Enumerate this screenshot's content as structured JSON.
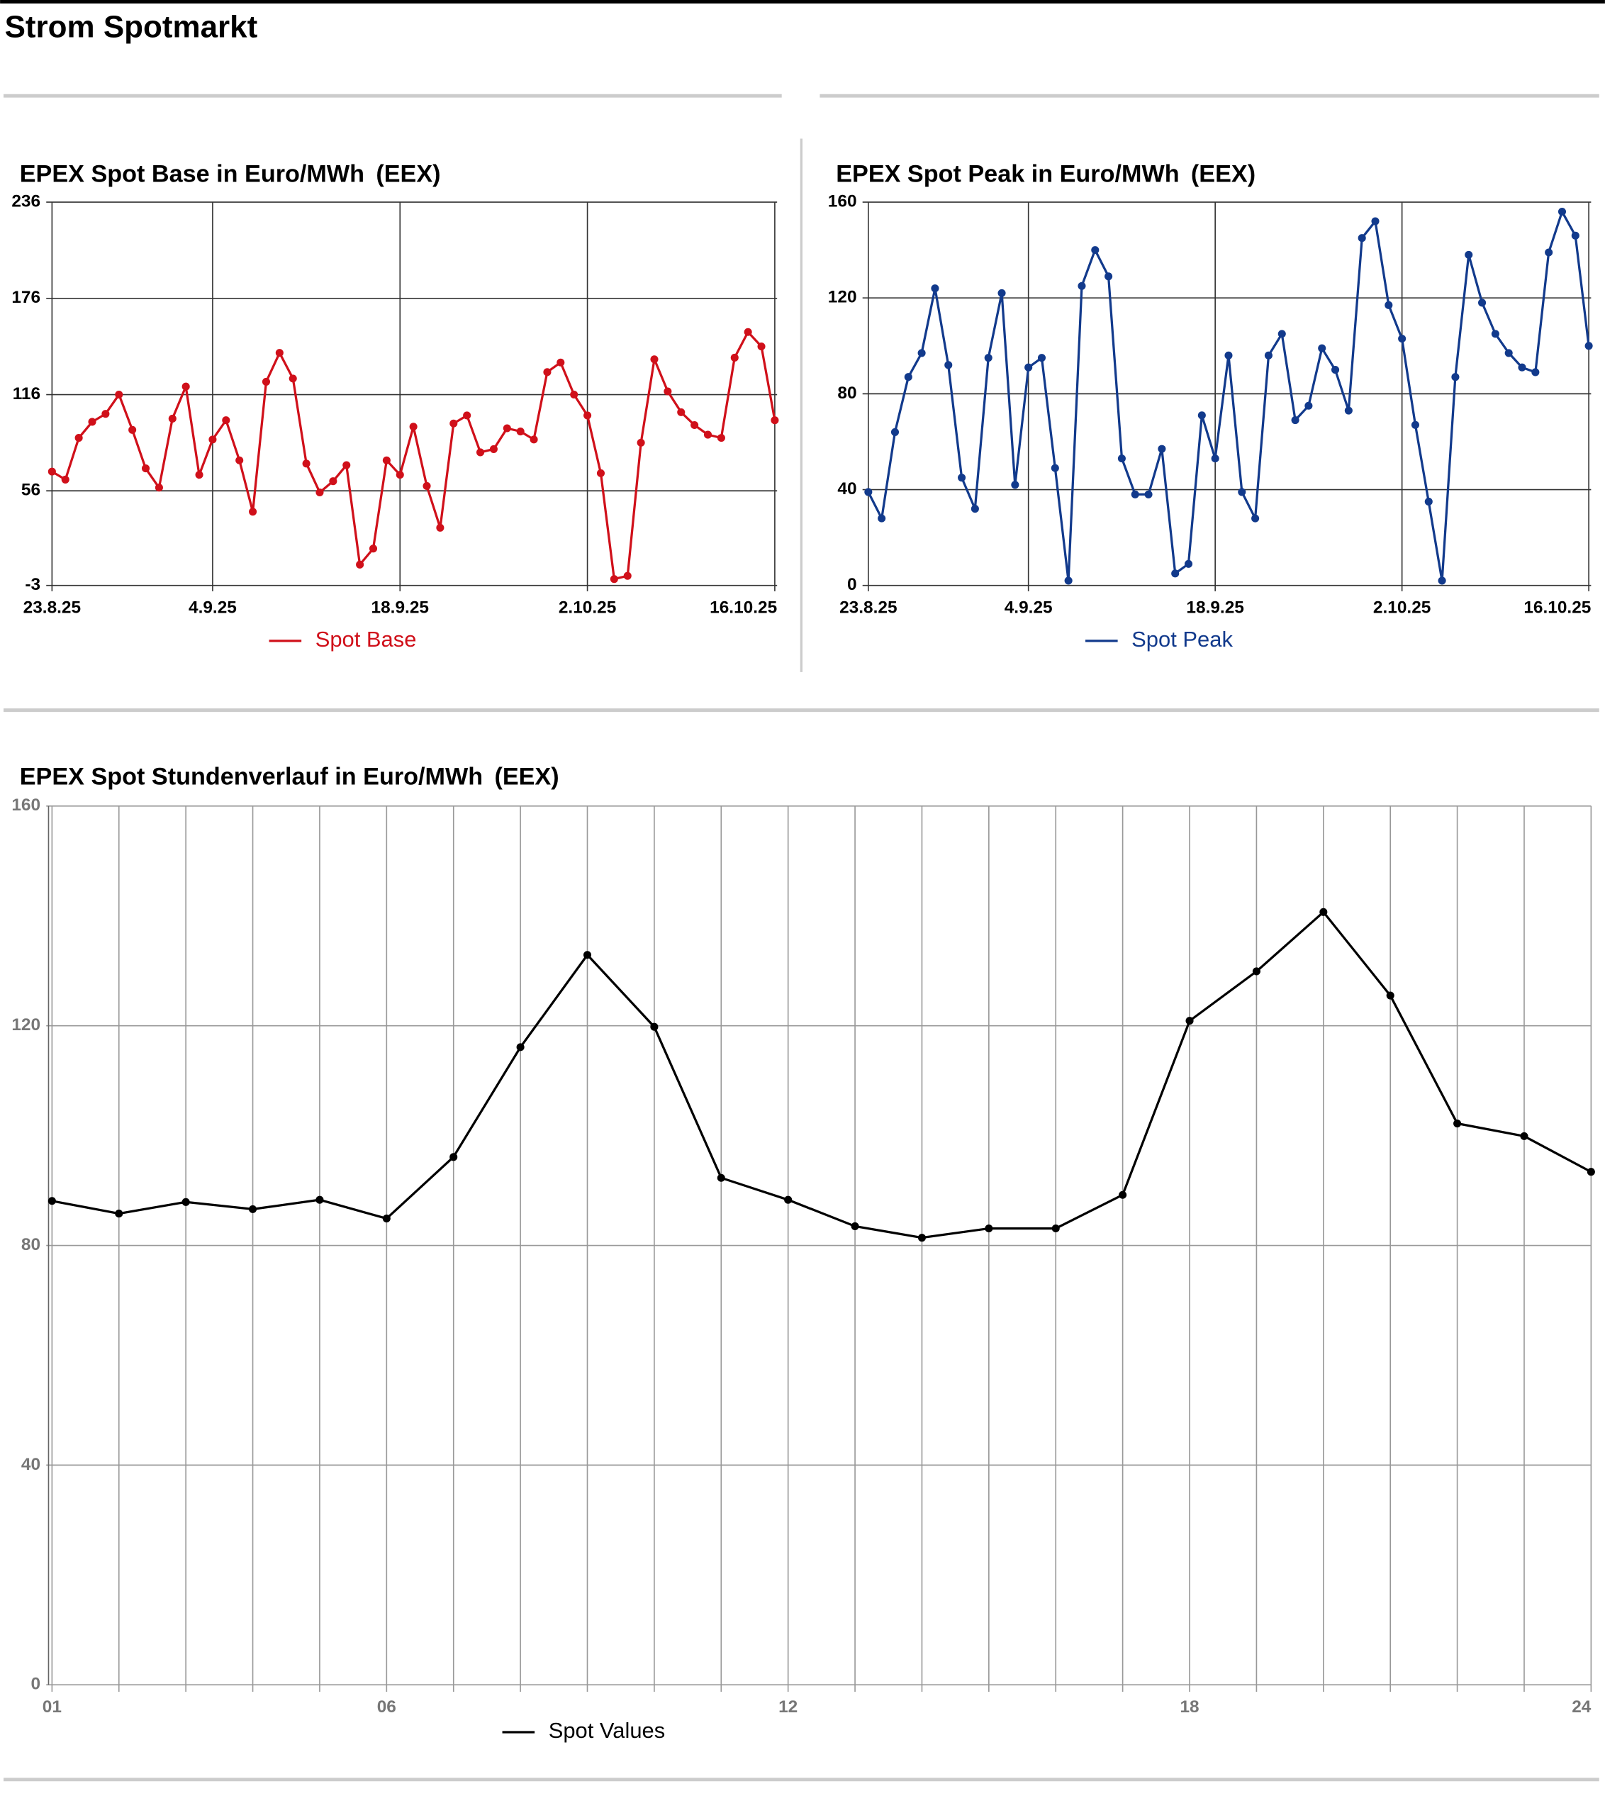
{
  "header": {
    "title": "Strom Spotmarkt"
  },
  "chart_data": [
    {
      "type": "line",
      "title": "EPEX Spot Base in Euro/MWh",
      "source": "(EEX)",
      "x": [
        "23.8.25",
        "24.8.25",
        "25.8.25",
        "26.8.25",
        "27.8.25",
        "28.8.25",
        "29.8.25",
        "30.8.25",
        "31.8.25",
        "1.9.25",
        "2.9.25",
        "3.9.25",
        "4.9.25",
        "5.9.25",
        "6.9.25",
        "7.9.25",
        "8.9.25",
        "9.9.25",
        "10.9.25",
        "11.9.25",
        "12.9.25",
        "13.9.25",
        "14.9.25",
        "15.9.25",
        "16.9.25",
        "17.9.25",
        "18.9.25",
        "19.9.25",
        "20.9.25",
        "21.9.25",
        "22.9.25",
        "23.9.25",
        "24.9.25",
        "25.9.25",
        "26.9.25",
        "27.9.25",
        "28.9.25",
        "29.9.25",
        "30.9.25",
        "1.10.25",
        "2.10.25",
        "3.10.25",
        "4.10.25",
        "5.10.25",
        "6.10.25",
        "7.10.25",
        "8.10.25",
        "9.10.25",
        "10.10.25",
        "11.10.25",
        "12.10.25",
        "13.10.25",
        "14.10.25",
        "15.10.25",
        "16.10.25"
      ],
      "xticks": [
        "23.8.25",
        "4.9.25",
        "18.9.25",
        "2.10.25",
        "16.10.25"
      ],
      "series": [
        {
          "name": "Spot Base",
          "color": "#d0101a",
          "values": [
            68,
            63,
            89,
            99,
            104,
            116,
            94,
            70,
            58,
            101,
            121,
            66,
            88,
            100,
            75,
            43,
            124,
            142,
            126,
            73,
            55,
            62,
            72,
            10,
            20,
            75,
            66,
            96,
            59,
            33,
            98,
            103,
            80,
            82,
            95,
            93,
            88,
            130,
            136,
            116,
            103,
            67,
            1,
            3,
            86,
            138,
            118,
            105,
            97,
            91,
            89,
            139,
            155,
            146,
            100
          ]
        }
      ],
      "ylim": [
        -3,
        236
      ],
      "yticks": [
        -3,
        56,
        116,
        176,
        236
      ],
      "grid": true
    },
    {
      "type": "line",
      "title": "EPEX Spot Peak in Euro/MWh",
      "source": "(EEX)",
      "x": [
        "23.8.25",
        "24.8.25",
        "25.8.25",
        "26.8.25",
        "27.8.25",
        "28.8.25",
        "29.8.25",
        "30.8.25",
        "31.8.25",
        "1.9.25",
        "2.9.25",
        "3.9.25",
        "4.9.25",
        "5.9.25",
        "6.9.25",
        "7.9.25",
        "8.9.25",
        "9.9.25",
        "10.9.25",
        "11.9.25",
        "12.9.25",
        "13.9.25",
        "14.9.25",
        "15.9.25",
        "16.9.25",
        "17.9.25",
        "18.9.25",
        "19.9.25",
        "20.9.25",
        "21.9.25",
        "22.9.25",
        "23.9.25",
        "24.9.25",
        "25.9.25",
        "26.9.25",
        "27.9.25",
        "28.9.25",
        "29.9.25",
        "30.9.25",
        "1.10.25",
        "2.10.25",
        "3.10.25",
        "4.10.25",
        "5.10.25",
        "6.10.25",
        "7.10.25",
        "8.10.25",
        "9.10.25",
        "10.10.25",
        "11.10.25",
        "12.10.25",
        "13.10.25",
        "14.10.25",
        "15.10.25",
        "16.10.25"
      ],
      "xticks": [
        "23.8.25",
        "4.9.25",
        "18.9.25",
        "2.10.25",
        "16.10.25"
      ],
      "series": [
        {
          "name": "Spot Peak",
          "color": "#123a8c",
          "values": [
            39,
            28,
            64,
            87,
            97,
            124,
            92,
            45,
            32,
            95,
            122,
            42,
            91,
            95,
            49,
            2,
            125,
            140,
            129,
            53,
            38,
            38,
            57,
            5,
            9,
            71,
            53,
            96,
            39,
            28,
            96,
            105,
            69,
            75,
            99,
            90,
            73,
            145,
            152,
            117,
            103,
            67,
            35,
            2,
            87,
            138,
            118,
            105,
            97,
            91,
            89,
            139,
            156,
            146,
            100
          ]
        }
      ],
      "ylim": [
        0,
        160
      ],
      "yticks": [
        0,
        40,
        80,
        120,
        160
      ],
      "grid": true
    },
    {
      "type": "line",
      "title": "EPEX Spot Stundenverlauf in Euro/MWh",
      "source": "(EEX)",
      "categories": [
        "01",
        null,
        null,
        null,
        null,
        "06",
        null,
        null,
        null,
        null,
        null,
        "12",
        null,
        null,
        null,
        null,
        null,
        "18",
        null,
        null,
        null,
        null,
        null,
        "24"
      ],
      "series": [
        {
          "name": "Spot Values",
          "color": "#000000",
          "values": [
            88.1,
            85.8,
            87.9,
            86.6,
            88.3,
            84.9,
            96.1,
            116.1,
            132.9,
            119.8,
            92.3,
            88.3,
            83.5,
            81.4,
            83.1,
            83.1,
            89.2,
            120.9,
            129.9,
            140.7,
            125.5,
            102.2,
            99.9,
            93.4
          ]
        }
      ],
      "ylim": [
        0,
        160
      ],
      "yticks": [
        0,
        40,
        80,
        120,
        160
      ],
      "grid": true
    }
  ]
}
